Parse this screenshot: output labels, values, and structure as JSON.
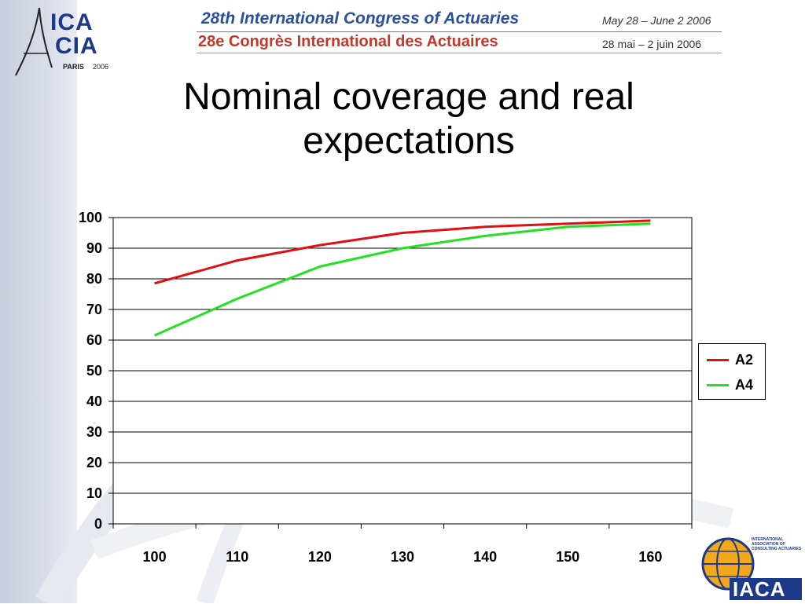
{
  "header": {
    "congress_en": "28th International Congress of Actuaries",
    "congress_fr": "28e Congrès International des Actuaires",
    "date_en": "May 28 – June 2 2006",
    "date_fr": "28 mai – 2 juin 2006"
  },
  "logo_ica": {
    "line1": "ICA",
    "line2": "CIA",
    "city": "PARIS",
    "year": "2006"
  },
  "logo_iaca": {
    "text": "IACA",
    "subtitle": "INTERNATIONAL ASSOCIATION OF CONSULTING ACTUARIES"
  },
  "title": "Nominal coverage and real expectations",
  "colors": {
    "a2": "#e01010",
    "a4": "#22e022",
    "brand_blue": "#1d3a8a",
    "brand_red": "#c4372a"
  },
  "chart_data": {
    "type": "line",
    "title": "",
    "xlabel": "",
    "ylabel": "",
    "x": [
      100,
      110,
      120,
      130,
      140,
      150,
      160
    ],
    "ylim": [
      0,
      100
    ],
    "yticks": [
      0,
      10,
      20,
      30,
      40,
      50,
      60,
      70,
      80,
      90,
      100
    ],
    "grid": true,
    "legend_position": "right",
    "series": [
      {
        "name": "A2",
        "color": "#e01010",
        "values": [
          78.5,
          86,
          91,
          95,
          97,
          98,
          99
        ]
      },
      {
        "name": "A4",
        "color": "#22e022",
        "values": [
          61.5,
          73.5,
          84,
          90,
          94,
          97,
          98
        ]
      }
    ]
  }
}
